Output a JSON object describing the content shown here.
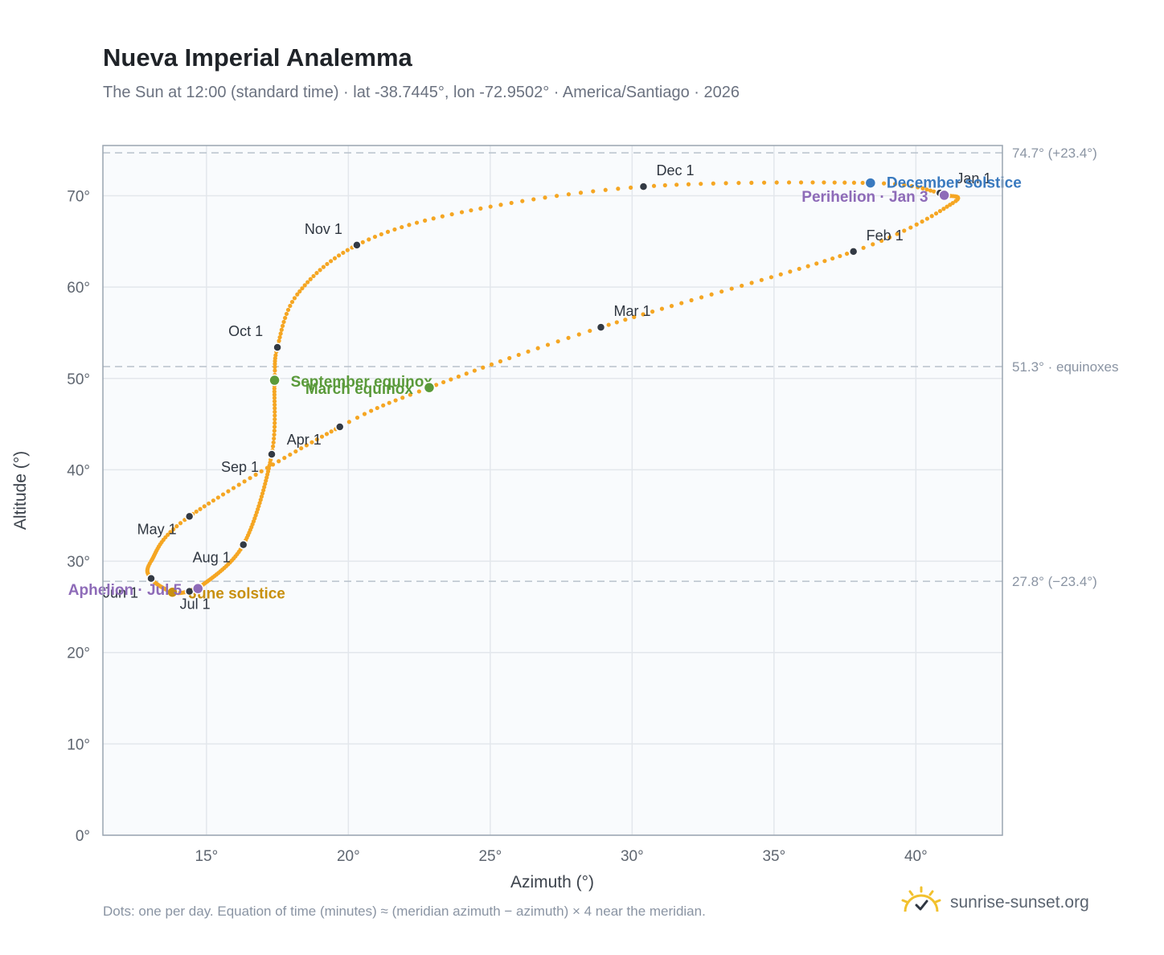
{
  "header": {
    "title": "Nueva Imperial Analemma",
    "subtitle": "The Sun at 12:00 (standard time) · lat -38.7445°, lon -72.9502° · America/Santiago · 2026"
  },
  "footer": {
    "note": "Dots: one per day. Equation of time (minutes) ≈ (meridian azimuth − azimuth) × 4 near the meridian.",
    "brand": "sunrise-sunset.org"
  },
  "colors": {
    "curve": "#f5a623",
    "month_marker": "#333a44",
    "solstice_dec": "#3a7abf",
    "solstice_jun": "#c8900f",
    "equinox": "#5a9a3a",
    "apsis": "#8e6bb8",
    "reference_line": "#b9c2cc",
    "plot_bg": "#f9fbfd",
    "grid": "#e3e7ec",
    "axis_text": "#5f6670"
  },
  "chart_data": {
    "type": "scatter",
    "xlabel": "Azimuth (°)",
    "ylabel": "Altitude (°)",
    "xlim": [
      11.35,
      43.05
    ],
    "ylim": [
      0,
      75.5
    ],
    "x_ticks": [
      15,
      20,
      25,
      30,
      35,
      40
    ],
    "x_tick_labels": [
      "15°",
      "20°",
      "25°",
      "30°",
      "35°",
      "40°"
    ],
    "y_ticks": [
      0,
      10,
      20,
      30,
      40,
      50,
      60,
      70
    ],
    "y_tick_labels": [
      "0°",
      "10°",
      "20°",
      "30°",
      "40°",
      "50°",
      "60°",
      "70°"
    ],
    "grid": true,
    "reference_lines": [
      {
        "y": 74.7,
        "label": "74.7° (+23.4°)"
      },
      {
        "y": 51.3,
        "label": "51.3° · equinoxes"
      },
      {
        "y": 27.8,
        "label": "27.8° (−23.4°)"
      }
    ],
    "path_anchors": [
      {
        "date": "Jan 1",
        "day": 1,
        "az": 40.85,
        "alt": 70.3
      },
      {
        "date": "Jan 3",
        "day": 3,
        "az": 41.0,
        "alt": 70.05
      },
      {
        "date": "Jan 15",
        "day": 15,
        "az": 41.3,
        "alt": 69.2
      },
      {
        "date": "Feb 1",
        "day": 32,
        "az": 37.8,
        "alt": 63.9
      },
      {
        "date": "Mar 1",
        "day": 60,
        "az": 28.9,
        "alt": 55.6
      },
      {
        "date": "Mar 20",
        "day": 79,
        "az": 22.85,
        "alt": 49.0
      },
      {
        "date": "Apr 1",
        "day": 91,
        "az": 19.7,
        "alt": 44.7
      },
      {
        "date": "May 1",
        "day": 121,
        "az": 14.4,
        "alt": 34.9
      },
      {
        "date": "May 20",
        "day": 140,
        "az": 13.05,
        "alt": 30.0
      },
      {
        "date": "Jun 1",
        "day": 152,
        "az": 13.05,
        "alt": 28.1
      },
      {
        "date": "Jun 21",
        "day": 172,
        "az": 13.8,
        "alt": 26.6
      },
      {
        "date": "Jul 1",
        "day": 182,
        "az": 14.4,
        "alt": 26.7
      },
      {
        "date": "Jul 5",
        "day": 186,
        "az": 14.7,
        "alt": 27.0
      },
      {
        "date": "Aug 1",
        "day": 213,
        "az": 16.3,
        "alt": 31.8
      },
      {
        "date": "Sep 1",
        "day": 244,
        "az": 17.3,
        "alt": 41.7
      },
      {
        "date": "Sep 22",
        "day": 265,
        "az": 17.4,
        "alt": 49.8
      },
      {
        "date": "Oct 1",
        "day": 274,
        "az": 17.5,
        "alt": 53.4
      },
      {
        "date": "Oct 15",
        "day": 288,
        "az": 18.2,
        "alt": 59.2
      },
      {
        "date": "Nov 1",
        "day": 305,
        "az": 20.3,
        "alt": 64.6
      },
      {
        "date": "Nov 15",
        "day": 319,
        "az": 24.0,
        "alt": 68.2
      },
      {
        "date": "Dec 1",
        "day": 335,
        "az": 30.4,
        "alt": 71.0
      },
      {
        "date": "Dec 21",
        "day": 355,
        "az": 38.4,
        "alt": 71.4
      },
      {
        "date": "Dec 31",
        "day": 365,
        "az": 40.75,
        "alt": 70.4
      }
    ],
    "month_markers": [
      {
        "label": "Jan 1",
        "az": 40.85,
        "alt": 70.3
      },
      {
        "label": "Feb 1",
        "az": 37.8,
        "alt": 63.9
      },
      {
        "label": "Mar 1",
        "az": 28.9,
        "alt": 55.6
      },
      {
        "label": "Apr 1",
        "az": 19.7,
        "alt": 44.7
      },
      {
        "label": "May 1",
        "az": 14.4,
        "alt": 34.9
      },
      {
        "label": "Jun 1",
        "az": 13.05,
        "alt": 28.1
      },
      {
        "label": "Jul 1",
        "az": 14.4,
        "alt": 26.7
      },
      {
        "label": "Aug 1",
        "az": 16.3,
        "alt": 31.8
      },
      {
        "label": "Sep 1",
        "az": 17.3,
        "alt": 41.7
      },
      {
        "label": "Oct 1",
        "az": 17.5,
        "alt": 53.4
      },
      {
        "label": "Nov 1",
        "az": 20.3,
        "alt": 64.6
      },
      {
        "label": "Dec 1",
        "az": 30.4,
        "alt": 71.0
      }
    ],
    "events": [
      {
        "label": "December solstice",
        "az": 38.4,
        "alt": 71.4,
        "kind": "solstice_dec"
      },
      {
        "label": "Perihelion · Jan 3",
        "az": 41.0,
        "alt": 70.05,
        "kind": "apsis"
      },
      {
        "label": "September equinox",
        "az": 17.4,
        "alt": 49.8,
        "kind": "equinox"
      },
      {
        "label": "March equinox",
        "az": 22.85,
        "alt": 49.0,
        "kind": "equinox"
      },
      {
        "label": "June solstice",
        "az": 13.8,
        "alt": 26.6,
        "kind": "solstice_jun"
      },
      {
        "label": "Aphelion · Jul 5",
        "az": 14.7,
        "alt": 27.0,
        "kind": "apsis"
      }
    ]
  }
}
